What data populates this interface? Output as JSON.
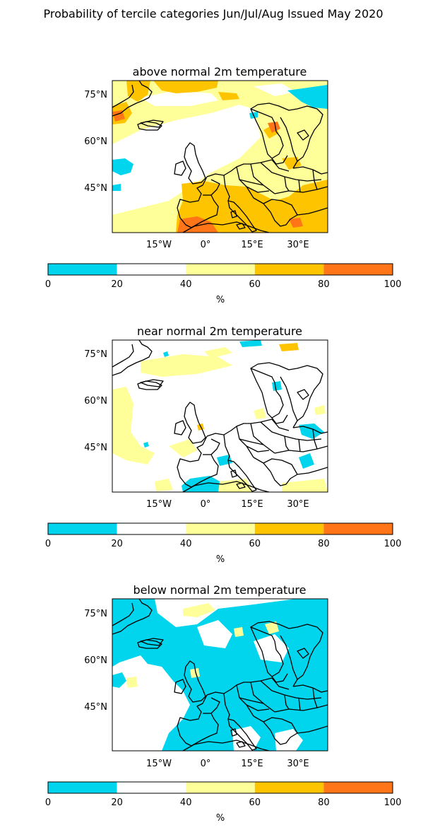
{
  "figure": {
    "title": "Probability of tercile categories Jun/Jul/Aug Issued May 2020"
  },
  "map": {
    "lat_ticks": [
      "75°N",
      "60°N",
      "45°N"
    ],
    "lon_ticks": [
      "15°W",
      "0°",
      "15°E",
      "30°E"
    ]
  },
  "panels": [
    {
      "title": "above normal 2m temperature",
      "key": "above"
    },
    {
      "title": "near normal 2m temperature",
      "key": "near"
    },
    {
      "title": "below normal 2m temperature",
      "key": "below"
    }
  ],
  "colorbar": {
    "unit": "%",
    "ticks": [
      "0",
      "20",
      "40",
      "60",
      "80",
      "100"
    ],
    "bins": [
      {
        "range": "0-20",
        "color": "#00d5ed"
      },
      {
        "range": "20-40",
        "color": "#ffffff"
      },
      {
        "range": "40-60",
        "color": "#ffff99"
      },
      {
        "range": "60-80",
        "color": "#ffc400"
      },
      {
        "range": "80-100",
        "color": "#ff7518"
      }
    ]
  },
  "colors": {
    "below": "#00d5ed",
    "normal": "#ffffff",
    "above_weak": "#ffff99",
    "above_mid": "#ffc400",
    "above_strong": "#ff7518",
    "coast": "#000000"
  }
}
